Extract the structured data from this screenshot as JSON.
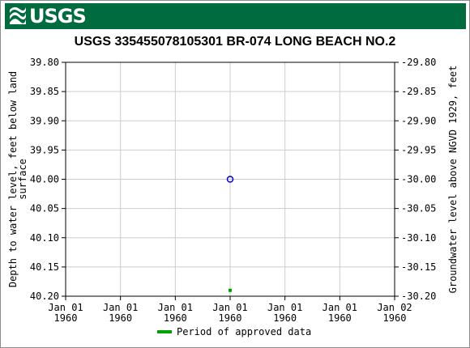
{
  "header": {
    "logo_text": "USGS"
  },
  "chart_data": {
    "type": "scatter",
    "title": "USGS 335455078105301 BR-074 LONG BEACH NO.2",
    "ylabel_left": "Depth to water level, feet below land surface",
    "ylabel_left_lines": [
      "Depth to water level, feet below land",
      "surface"
    ],
    "ylabel_right": "Groundwater level above NGVD 1929, feet",
    "y_left_range": [
      39.8,
      40.2
    ],
    "y_left_inverted": true,
    "y_left_ticks": [
      "39.80",
      "39.85",
      "39.90",
      "39.95",
      "40.00",
      "40.05",
      "40.10",
      "40.15",
      "40.20"
    ],
    "y_right_ticks": [
      "-29.80",
      "-29.85",
      "-29.90",
      "-29.95",
      "-30.00",
      "-30.05",
      "-30.10",
      "-30.15",
      "-30.20"
    ],
    "x_ticks": [
      [
        "Jan 01",
        "1960"
      ],
      [
        "Jan 01",
        "1960"
      ],
      [
        "Jan 01",
        "1960"
      ],
      [
        "Jan 01",
        "1960"
      ],
      [
        "Jan 01",
        "1960"
      ],
      [
        "Jan 01",
        "1960"
      ],
      [
        "Jan 02",
        "1960"
      ]
    ],
    "grid": true,
    "series": [
      {
        "marker": "open-circle",
        "color": "#0000cc",
        "points": [
          {
            "x_tick_position": 3,
            "y": 40.0
          }
        ]
      },
      {
        "marker": "square",
        "color": "#00a000",
        "points": [
          {
            "x_tick_position": 3,
            "y": 40.19
          }
        ]
      }
    ],
    "legend": [
      {
        "label": "Period of approved data",
        "color": "#00a000"
      }
    ],
    "legend_placement": "bottom-center"
  }
}
